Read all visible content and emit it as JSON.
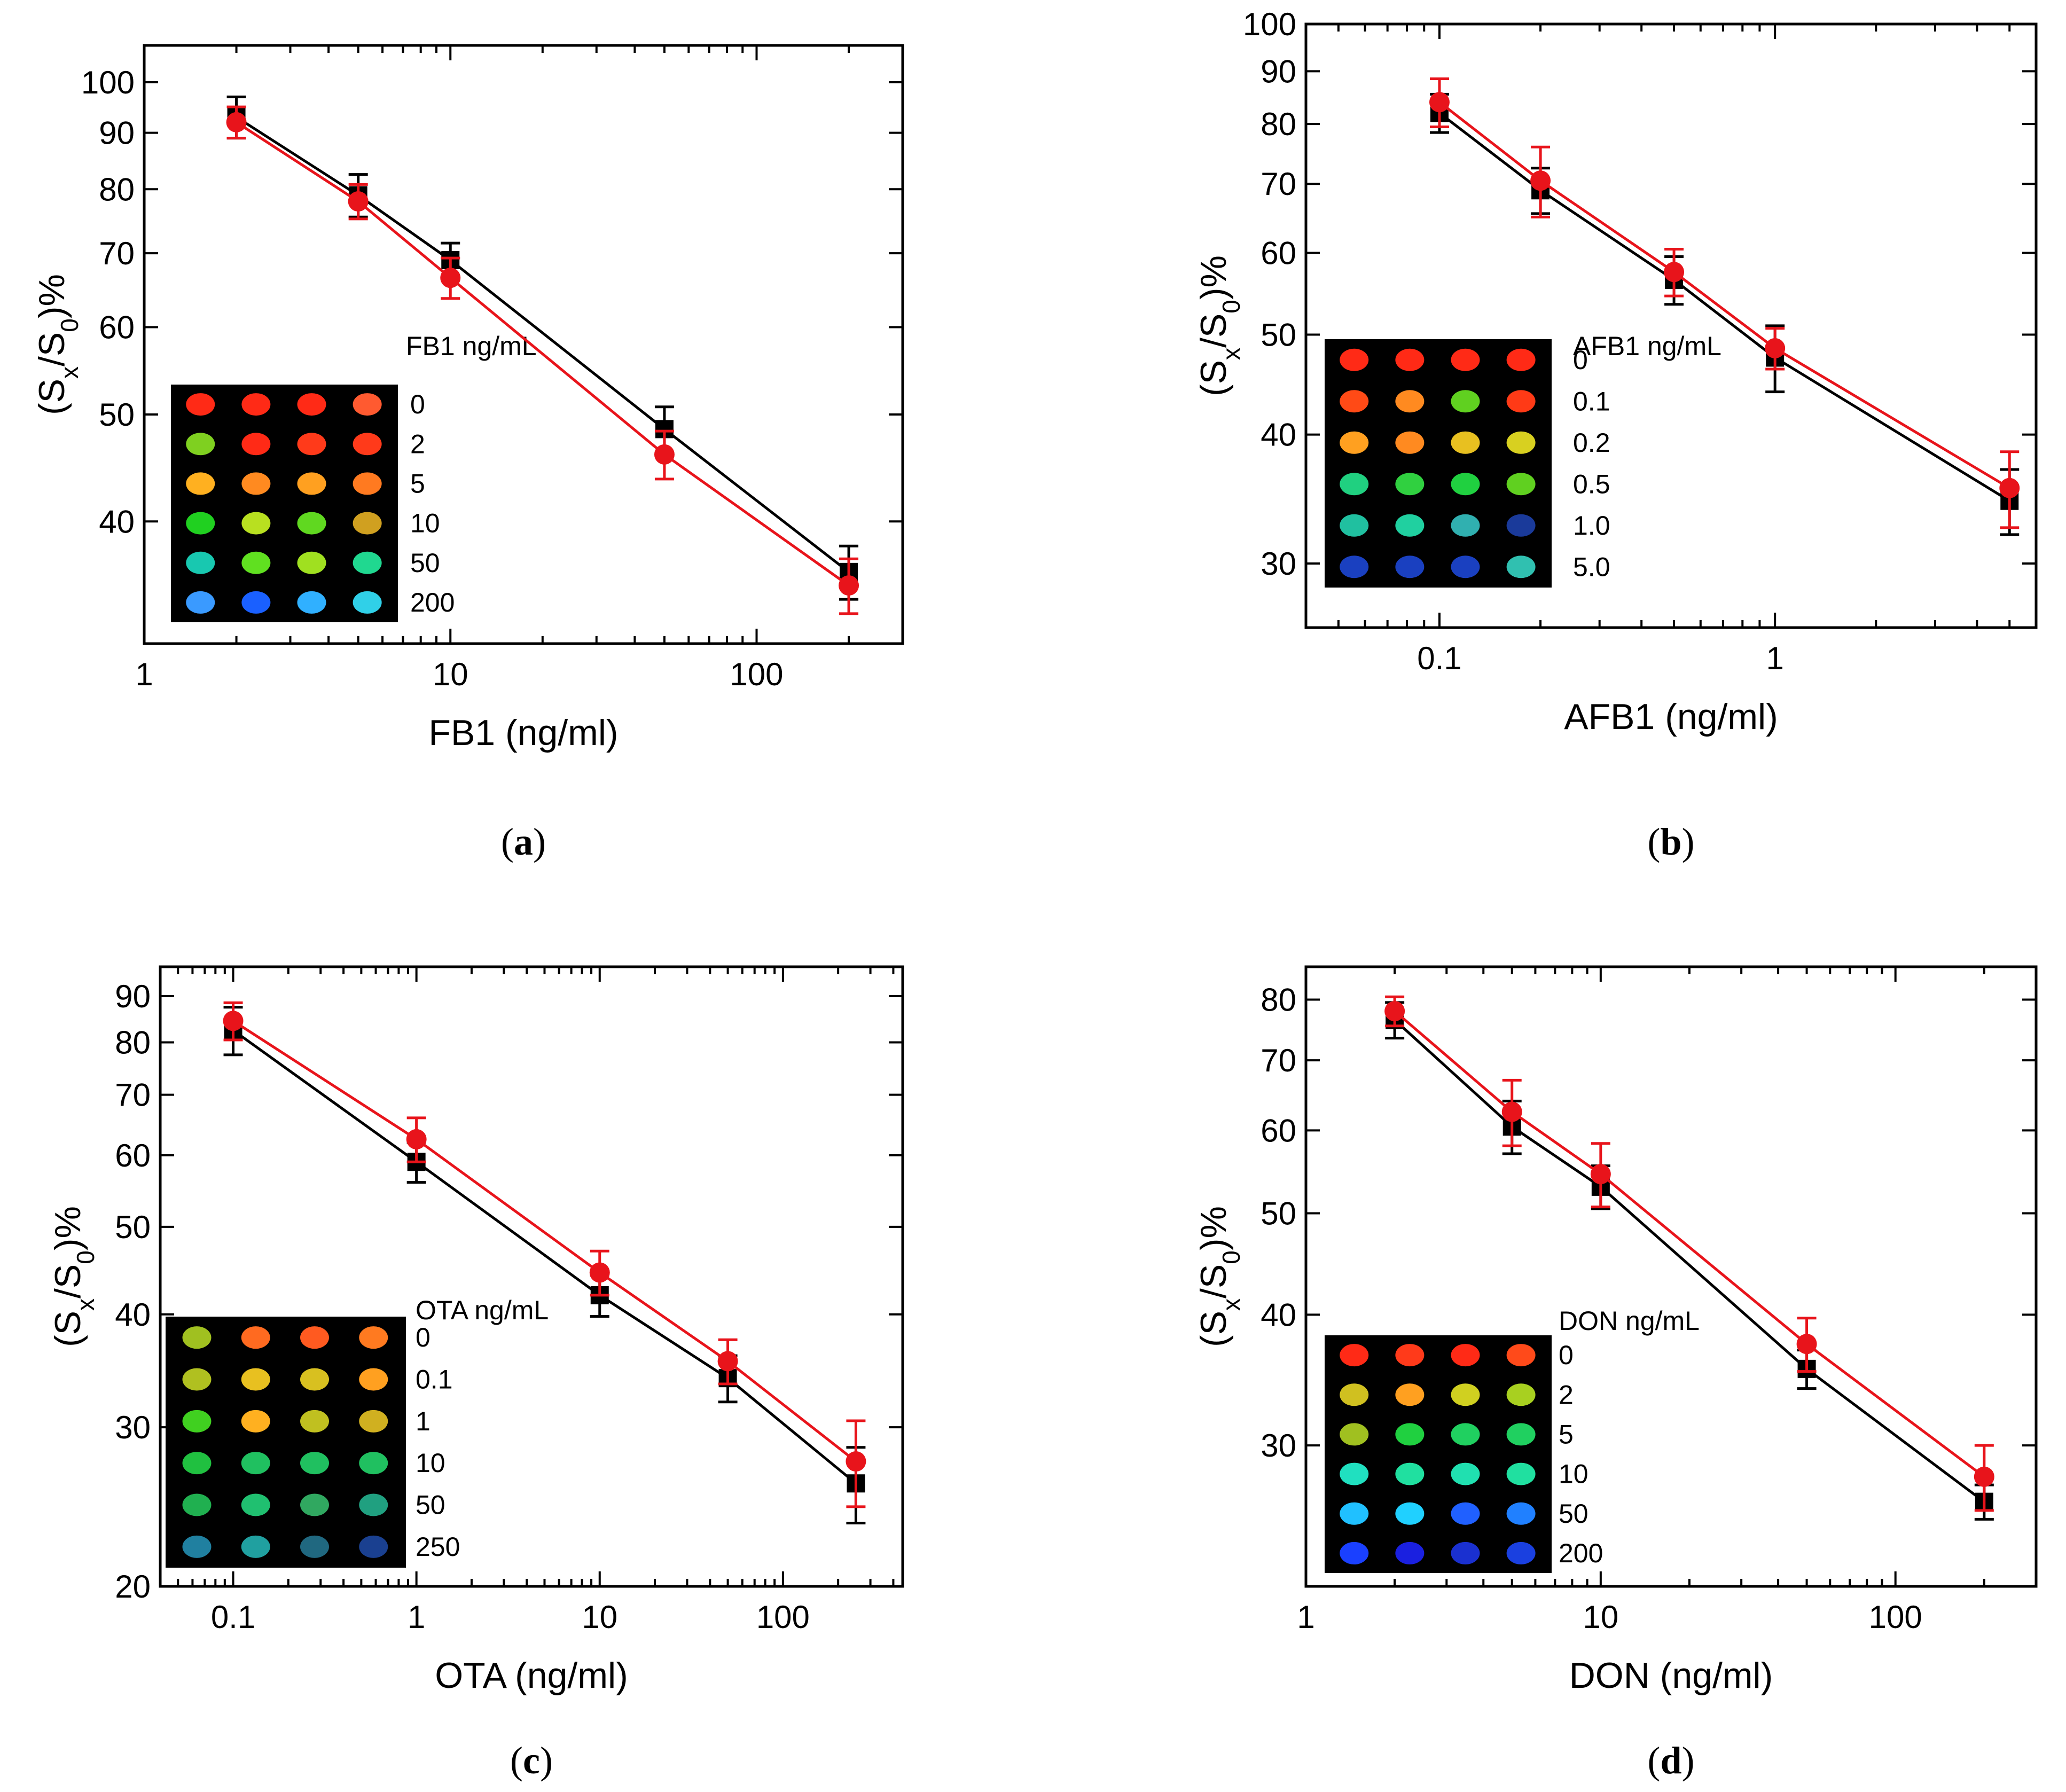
{
  "colors": {
    "series_black": "#000000",
    "series_red": "#e8141b",
    "inset_bg": "#000000"
  },
  "chart_data": [
    {
      "id": "a",
      "type": "line",
      "scale": "log-log",
      "caption_letter": "a",
      "xlabel": "FB1 (ng/ml)",
      "ylabel": {
        "pre": "(S",
        "sub1": "x",
        "mid": "/S",
        "sub2": "0",
        "post": ")%"
      },
      "xlim": [
        1,
        300
      ],
      "ylim": [
        31,
        108
      ],
      "xticks": [
        {
          "v": 1,
          "l": "1"
        },
        {
          "v": 10,
          "l": "10"
        },
        {
          "v": 100,
          "l": "100"
        }
      ],
      "yticks": [
        {
          "v": 40,
          "l": "40"
        },
        {
          "v": 50,
          "l": "50"
        },
        {
          "v": 60,
          "l": "60"
        },
        {
          "v": 70,
          "l": "70"
        },
        {
          "v": 80,
          "l": "80"
        },
        {
          "v": 90,
          "l": "90"
        },
        {
          "v": 100,
          "l": "100"
        }
      ],
      "series": [
        {
          "name": "black",
          "marker": "square",
          "x": [
            2,
            5,
            10,
            50,
            200
          ],
          "y": [
            93,
            79,
            69,
            48.5,
            36
          ],
          "err": [
            4,
            3.5,
            2.5,
            2.3,
            2
          ]
        },
        {
          "name": "red",
          "marker": "circle",
          "x": [
            2,
            5,
            10,
            50,
            200
          ],
          "y": [
            92,
            78,
            66.5,
            46,
            35
          ],
          "err": [
            3,
            2.8,
            2.8,
            2.3,
            2
          ]
        }
      ],
      "inset": {
        "title": "FB1 ng/mL",
        "rows": [
          {
            "label": "0",
            "spots": [
              "#ff2a16",
              "#ff2a16",
              "#ff2a16",
              "#ff5a30"
            ]
          },
          {
            "label": "2",
            "spots": [
              "#7fd020",
              "#ff2a16",
              "#ff3a1a",
              "#ff3a1a"
            ]
          },
          {
            "label": "5",
            "spots": [
              "#ffb020",
              "#ff8a20",
              "#ffa020",
              "#ff7a20"
            ]
          },
          {
            "label": "10",
            "spots": [
              "#20d020",
              "#b8e020",
              "#60d820",
              "#d0a020"
            ]
          },
          {
            "label": "50",
            "spots": [
              "#18c8b0",
              "#60e020",
              "#a0e020",
              "#20d890"
            ]
          },
          {
            "label": "200",
            "spots": [
              "#3a9aff",
              "#1a60ff",
              "#30b0ff",
              "#30d0e8"
            ]
          }
        ]
      }
    },
    {
      "id": "b",
      "type": "line",
      "scale": "log-log",
      "caption_letter": "b",
      "xlabel": "AFB1 (ng/ml)",
      "ylabel": {
        "pre": "(S",
        "sub1": "x",
        "mid": "/S",
        "sub2": "0",
        "post": ")%"
      },
      "xlim": [
        0.04,
        6
      ],
      "ylim": [
        26,
        100
      ],
      "xticks": [
        {
          "v": 0.1,
          "l": "0.1"
        },
        {
          "v": 1,
          "l": "1"
        }
      ],
      "yticks": [
        {
          "v": 30,
          "l": "30"
        },
        {
          "v": 40,
          "l": "40"
        },
        {
          "v": 50,
          "l": "50"
        },
        {
          "v": 60,
          "l": "60"
        },
        {
          "v": 70,
          "l": "70"
        },
        {
          "v": 80,
          "l": "80"
        },
        {
          "v": 90,
          "l": "90"
        },
        {
          "v": 100,
          "l": "100"
        }
      ],
      "series": [
        {
          "name": "black",
          "marker": "square",
          "x": [
            0.1,
            0.2,
            0.5,
            1,
            5
          ],
          "y": [
            82,
            69,
            56.5,
            47.5,
            34.5
          ],
          "err": [
            3.5,
            3.5,
            3,
            3.5,
            2.5
          ]
        },
        {
          "name": "red",
          "marker": "circle",
          "x": [
            0.1,
            0.2,
            0.5,
            1,
            5
          ],
          "y": [
            84,
            70.5,
            57.5,
            48.5,
            35.5
          ],
          "err": [
            4.5,
            5.5,
            3,
            2.2,
            3
          ]
        }
      ],
      "inset": {
        "title": "AFB1 ng/mL",
        "rows": [
          {
            "label": "0",
            "spots": [
              "#ff2a16",
              "#ff2a16",
              "#ff2a16",
              "#ff2a16"
            ]
          },
          {
            "label": "0.1",
            "spots": [
              "#ff4a16",
              "#ff8a20",
              "#60d020",
              "#ff3a16"
            ]
          },
          {
            "label": "0.2",
            "spots": [
              "#ffa020",
              "#ff8a20",
              "#e8c020",
              "#d8d020"
            ]
          },
          {
            "label": "0.5",
            "spots": [
              "#20d080",
              "#30d040",
              "#20d040",
              "#60d020"
            ]
          },
          {
            "label": "1.0",
            "spots": [
              "#20c0a0",
              "#20d0a0",
              "#30b0b0",
              "#1a3a9a"
            ]
          },
          {
            "label": "5.0",
            "spots": [
              "#1a40c0",
              "#1a40c0",
              "#1a40c0",
              "#30c0b0"
            ]
          }
        ]
      }
    },
    {
      "id": "c",
      "type": "line",
      "scale": "log-log",
      "caption_letter": "c",
      "xlabel": "OTA (ng/ml)",
      "ylabel": {
        "pre": "(S",
        "sub1": "x",
        "mid": "/S",
        "sub2": "0",
        "post": ")%"
      },
      "xlim": [
        0.04,
        450
      ],
      "ylim": [
        20,
        97
      ],
      "xticks": [
        {
          "v": 0.1,
          "l": "0.1"
        },
        {
          "v": 1,
          "l": "1"
        },
        {
          "v": 10,
          "l": "10"
        },
        {
          "v": 100,
          "l": "100"
        }
      ],
      "yticks": [
        {
          "v": 20,
          "l": "20"
        },
        {
          "v": 30,
          "l": "30"
        },
        {
          "v": 40,
          "l": "40"
        },
        {
          "v": 50,
          "l": "50"
        },
        {
          "v": 60,
          "l": "60"
        },
        {
          "v": 70,
          "l": "70"
        },
        {
          "v": 80,
          "l": "80"
        },
        {
          "v": 90,
          "l": "90"
        }
      ],
      "series": [
        {
          "name": "black",
          "marker": "square",
          "x": [
            0.1,
            1,
            10,
            50,
            250
          ],
          "y": [
            82.5,
            59,
            42,
            34,
            26
          ],
          "err": [
            5,
            3,
            2.2,
            2,
            2.5
          ]
        },
        {
          "name": "red",
          "marker": "circle",
          "x": [
            0.1,
            1,
            10,
            50,
            250
          ],
          "y": [
            84.5,
            62.5,
            44.5,
            35.5,
            27.5
          ],
          "err": [
            4,
            3.5,
            2.5,
            2,
            3
          ]
        }
      ],
      "inset": {
        "title": "OTA ng/mL",
        "rows": [
          {
            "label": "0",
            "spots": [
              "#a0c020",
              "#ff6a20",
              "#ff5a20",
              "#ff7a20"
            ]
          },
          {
            "label": "0.1",
            "spots": [
              "#b0c020",
              "#e8c020",
              "#d8c020",
              "#ffa020"
            ]
          },
          {
            "label": "1",
            "spots": [
              "#40d020",
              "#ffb020",
              "#c0c020",
              "#d0b020"
            ]
          },
          {
            "label": "10",
            "spots": [
              "#20c040",
              "#20c060",
              "#20c060",
              "#20c060"
            ]
          },
          {
            "label": "50",
            "spots": [
              "#20b050",
              "#20c070",
              "#30a860",
              "#20a080"
            ]
          },
          {
            "label": "250",
            "spots": [
              "#2080a0",
              "#20a0a0",
              "#206880",
              "#1a4090"
            ]
          }
        ]
      }
    },
    {
      "id": "d",
      "type": "line",
      "scale": "log-log",
      "caption_letter": "d",
      "xlabel": "DON (ng/ml)",
      "ylabel": {
        "pre": "(S",
        "sub1": "x",
        "mid": "/S",
        "sub2": "0",
        "post": ")%"
      },
      "xlim": [
        1,
        300
      ],
      "ylim": [
        22,
        86
      ],
      "xticks": [
        {
          "v": 1,
          "l": "1"
        },
        {
          "v": 10,
          "l": "10"
        },
        {
          "v": 100,
          "l": "100"
        }
      ],
      "yticks": [
        {
          "v": 30,
          "l": "30"
        },
        {
          "v": 40,
          "l": "40"
        },
        {
          "v": 50,
          "l": "50"
        },
        {
          "v": 60,
          "l": "60"
        },
        {
          "v": 70,
          "l": "70"
        },
        {
          "v": 80,
          "l": "80"
        }
      ],
      "series": [
        {
          "name": "black",
          "marker": "square",
          "x": [
            2,
            5,
            10,
            50,
            200
          ],
          "y": [
            76.5,
            60.5,
            53,
            35.5,
            26.5
          ],
          "err": [
            3,
            3.5,
            2.5,
            1.5,
            1
          ]
        },
        {
          "name": "red",
          "marker": "circle",
          "x": [
            2,
            5,
            10,
            50,
            200
          ],
          "y": [
            78,
            62.5,
            54.5,
            37.5,
            28
          ],
          "err": [
            2.5,
            4.5,
            3.8,
            2.2,
            2
          ]
        }
      ],
      "inset": {
        "title": "DON ng/mL",
        "rows": [
          {
            "label": "0",
            "spots": [
              "#ff2a16",
              "#ff3a1a",
              "#ff2a16",
              "#ff4a1a"
            ]
          },
          {
            "label": "2",
            "spots": [
              "#d0c020",
              "#ffa020",
              "#d0d020",
              "#a8d020"
            ]
          },
          {
            "label": "5",
            "spots": [
              "#a0c020",
              "#20d040",
              "#20d060",
              "#20d060"
            ]
          },
          {
            "label": "10",
            "spots": [
              "#20e0c0",
              "#20e0a0",
              "#20e0b0",
              "#20e0a0"
            ]
          },
          {
            "label": "50",
            "spots": [
              "#20c0ff",
              "#20d0ff",
              "#2060ff",
              "#2080ff"
            ]
          },
          {
            "label": "200",
            "spots": [
              "#1a40ff",
              "#1a20e0",
              "#1a30d0",
              "#1a40e0"
            ]
          }
        ]
      }
    }
  ]
}
